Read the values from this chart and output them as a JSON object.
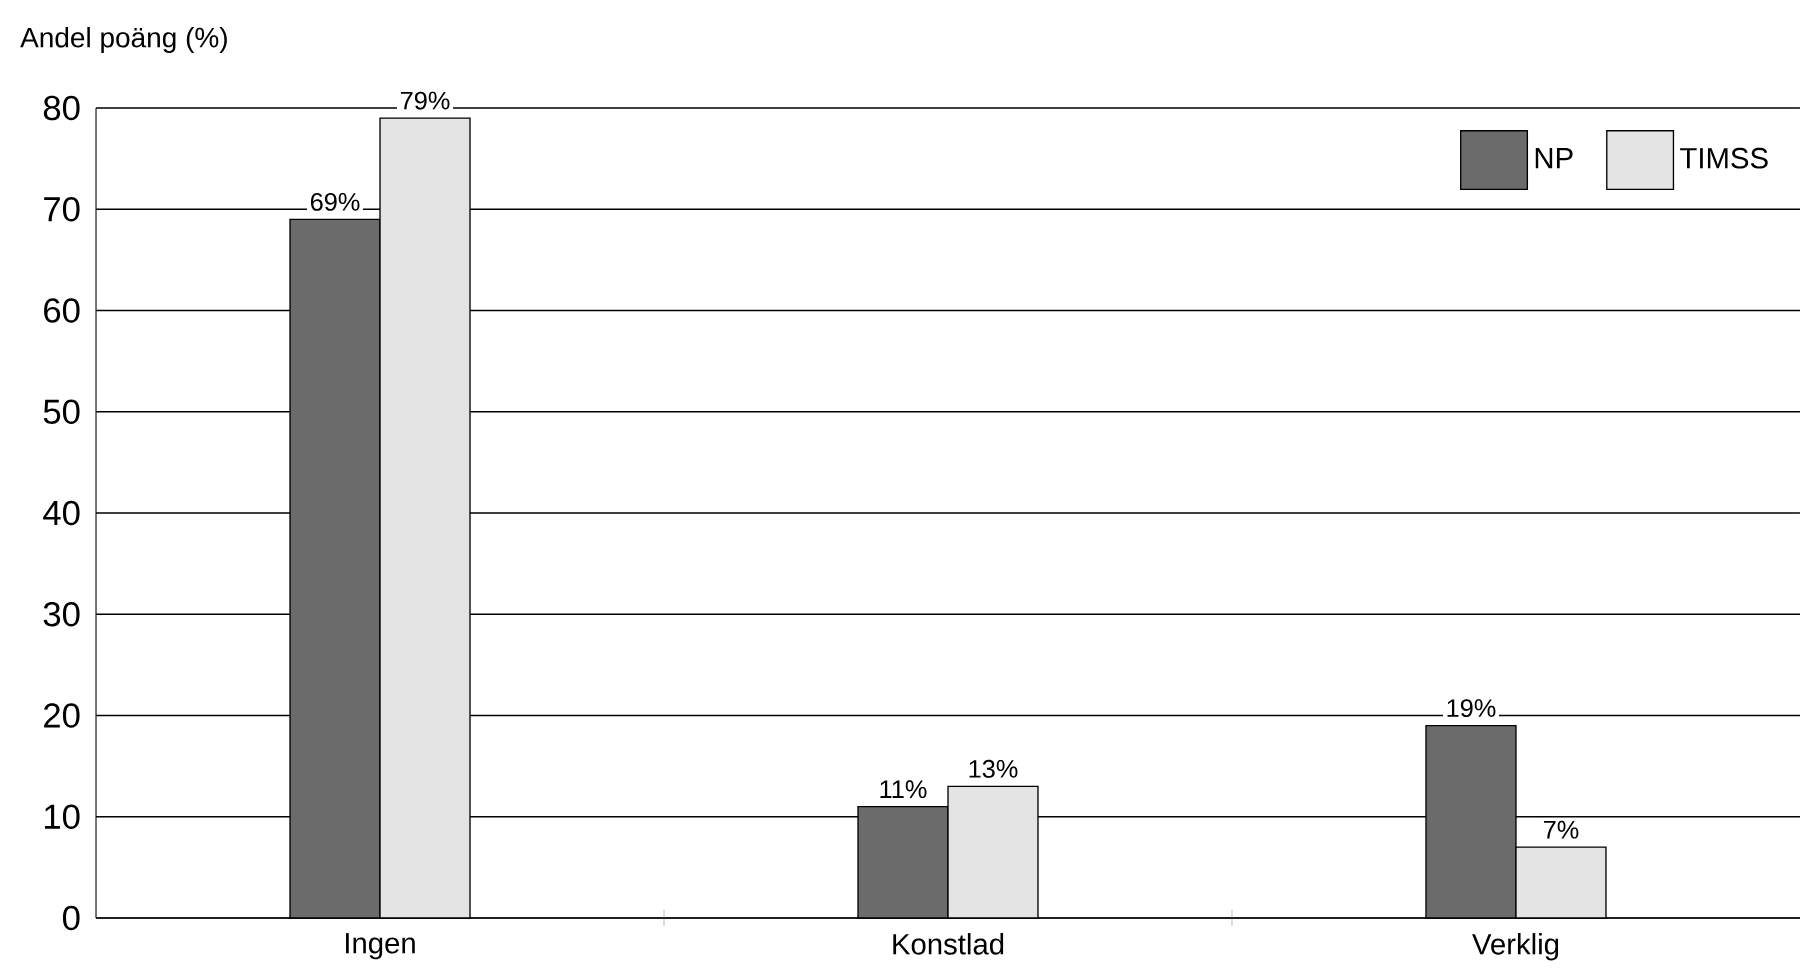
{
  "chart_data": {
    "type": "bar",
    "ylabel": "Andel poäng (%)",
    "categories": [
      "Ingen",
      "Konstlad",
      "Verklig"
    ],
    "series": [
      {
        "name": "NP",
        "color": "#6b6b6b",
        "values": [
          69,
          11,
          19
        ],
        "value_labels": [
          "69%",
          "11%",
          "19%"
        ]
      },
      {
        "name": "TIMSS",
        "color": "#e4e4e4",
        "values": [
          79,
          13,
          7
        ],
        "value_labels": [
          "79%",
          "13%",
          "7%"
        ]
      }
    ],
    "ylim": [
      0,
      80
    ],
    "yticks": [
      0,
      10,
      20,
      30,
      40,
      50,
      60,
      70,
      80
    ],
    "grid": "y",
    "legend": "top right"
  }
}
